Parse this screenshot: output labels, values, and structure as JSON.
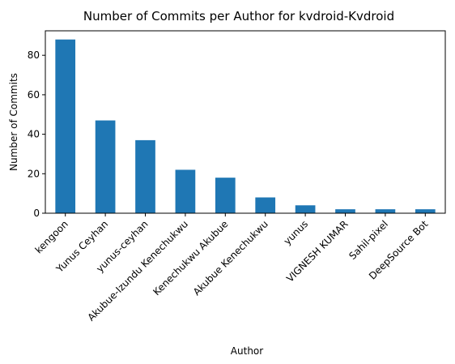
{
  "chart_data": {
    "type": "bar",
    "title": "Number of Commits per Author for kvdroid-Kvdroid",
    "xlabel": "Author",
    "ylabel": "Number of Commits",
    "categories": [
      "kengoon",
      "Yunus Ceyhan",
      "yunus-ceyhan",
      "Akubue-Izundu Kenechukwu",
      "Kenechukwu Akubue",
      "Akubue Kenechukwu",
      "yunus",
      "VIGNESH KUMAR",
      "Sahil-pixel",
      "DeepSource Bot"
    ],
    "values": [
      88,
      47,
      37,
      22,
      18,
      8,
      4,
      2,
      2,
      2
    ],
    "yticks": [
      0,
      20,
      40,
      60,
      80
    ],
    "ylim": [
      0,
      92.4
    ],
    "grid": false,
    "legend": "none",
    "bar_color": "#1f77b4"
  }
}
